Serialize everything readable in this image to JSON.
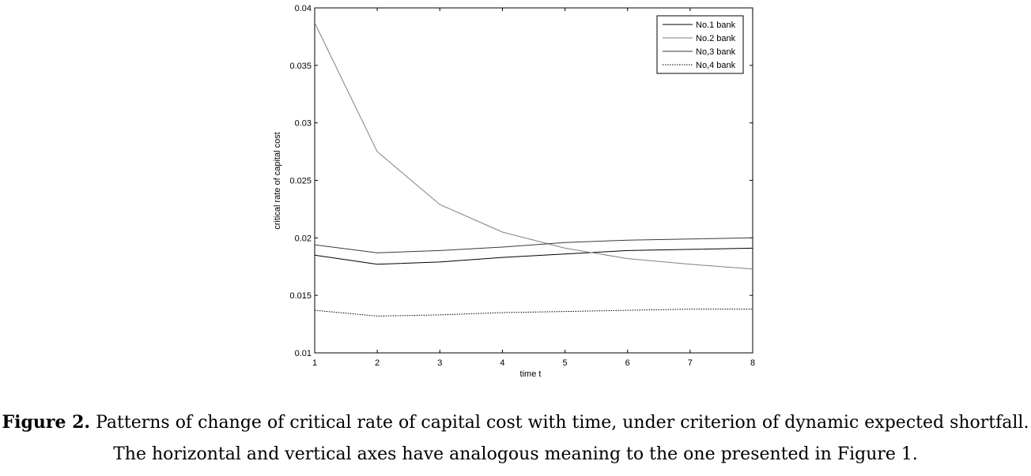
{
  "chart_data": {
    "type": "line",
    "title": "",
    "xlabel": "time t",
    "ylabel": "critical rate of capital cost",
    "xlim": [
      1,
      8
    ],
    "ylim": [
      0.01,
      0.04
    ],
    "x": [
      1,
      2,
      3,
      4,
      5,
      6,
      7,
      8
    ],
    "xticks": [
      "1",
      "2",
      "3",
      "4",
      "5",
      "6",
      "7",
      "8"
    ],
    "yticks": [
      0.01,
      0.015,
      0.02,
      0.025,
      0.03,
      0.035,
      0.04
    ],
    "yticklabels": [
      "0.01",
      "0.015",
      "0.02",
      "0.025",
      "0.03",
      "0.035",
      "0.04"
    ],
    "grid": false,
    "legend_position": "top-right",
    "series": [
      {
        "name": "No.1 bank",
        "color": "#000000",
        "dash": "solid",
        "values": [
          0.0185,
          0.0177,
          0.0179,
          0.0183,
          0.0186,
          0.0189,
          0.019,
          0.0191
        ]
      },
      {
        "name": "No.2 bank",
        "color": "#808080",
        "dash": "solid",
        "values": [
          0.0387,
          0.0275,
          0.0229,
          0.0205,
          0.0191,
          0.0182,
          0.0177,
          0.0173
        ]
      },
      {
        "name": "No,3 bank",
        "color": "#3a3a3a",
        "dash": "solid",
        "values": [
          0.0194,
          0.0187,
          0.0189,
          0.0192,
          0.0196,
          0.0198,
          0.0199,
          0.02
        ]
      },
      {
        "name": "No,4 bank",
        "color": "#000000",
        "dash": "dotted",
        "values": [
          0.0137,
          0.0132,
          0.0133,
          0.0135,
          0.0136,
          0.0137,
          0.0138,
          0.0138
        ]
      }
    ]
  },
  "caption": {
    "label": "Figure 2.",
    "line1": " Patterns of change of critical rate of capital cost with time, under criterion of dynamic expected shortfall.",
    "line2": "The horizontal and vertical axes have analogous meaning to the one presented in Figure 1."
  }
}
